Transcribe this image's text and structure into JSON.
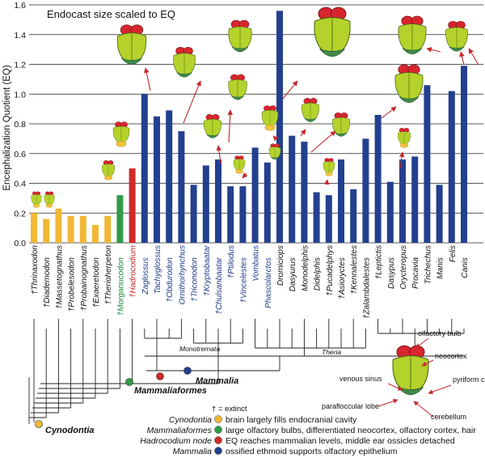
{
  "chart_data": {
    "type": "bar",
    "title": "Endocast size scaled to EQ",
    "ylabel": "Encephalization Quotient (EQ)",
    "ylim": [
      0,
      1.6
    ],
    "yticks": [
      "0.0",
      "0.2",
      "0.4",
      "0.6",
      "0.8",
      "1.0",
      "1.2",
      "1.4",
      "1.6"
    ],
    "grid": true,
    "categories": [
      "†Thrinaxodon",
      "†Diademodon",
      "†Massetognathus",
      "†Probelesodon",
      "†Probainognathus",
      "†Exaeretodon",
      "†Therioherpeton",
      "†Morganucodon",
      "†Hadrocodium",
      "Zaglossus",
      "Tachyglossus",
      "†Obdurodon",
      "Ornithorhynchus",
      "†Triconodon",
      "†Kryptobaatar",
      "†Chulsanbaatar",
      "†Ptilodus",
      "†Vincelestes",
      "Vombatus",
      "Phascolarctos",
      "Dromiciops",
      "Dasyurus",
      "Monodelphis",
      "Didelphis",
      "†Pucadelphys",
      "†Asioryctes",
      "†Kennalestes",
      "†Zalambdalestes",
      "†Leptictis",
      "Dasypus",
      "Orycteropus",
      "Procavia",
      "Trichechus",
      "Manis",
      "Felis",
      "Canis"
    ],
    "values": [
      0.2,
      0.16,
      0.23,
      0.18,
      0.18,
      0.12,
      0.18,
      0.32,
      0.5,
      1.0,
      0.85,
      0.89,
      0.75,
      0.39,
      0.52,
      0.56,
      0.38,
      0.38,
      0.64,
      0.54,
      1.56,
      0.72,
      0.68,
      0.34,
      0.32,
      0.56,
      0.36,
      0.7,
      0.86,
      0.41,
      0.56,
      0.58,
      1.06,
      0.39,
      1.02,
      1.19
    ],
    "bar_colors": [
      "#f2b733",
      "#f2b733",
      "#f2b733",
      "#f2b733",
      "#f2b733",
      "#f2b733",
      "#f2b733",
      "#2e9b46",
      "#d02a27",
      "#23408f",
      "#23408f",
      "#23408f",
      "#23408f",
      "#23408f",
      "#23408f",
      "#23408f",
      "#23408f",
      "#23408f",
      "#23408f",
      "#23408f",
      "#23408f",
      "#23408f",
      "#23408f",
      "#23408f",
      "#23408f",
      "#23408f",
      "#23408f",
      "#23408f",
      "#23408f",
      "#23408f",
      "#23408f",
      "#23408f",
      "#23408f",
      "#23408f",
      "#23408f",
      "#23408f"
    ],
    "label_colors": [
      "#111111",
      "#111111",
      "#111111",
      "#111111",
      "#111111",
      "#111111",
      "#111111",
      "#1f8a3a",
      "#c62828",
      "#1d3a8a",
      "#1d3a8a",
      "#1d3a8a",
      "#1d3a8a",
      "#1d3a8a",
      "#1d3a8a",
      "#1d3a8a",
      "#1d3a8a",
      "#1d3a8a",
      "#1d3a8a",
      "#1d3a8a",
      "#111111",
      "#111111",
      "#111111",
      "#111111",
      "#111111",
      "#111111",
      "#111111",
      "#111111",
      "#111111",
      "#111111",
      "#111111",
      "#111111",
      "#111111",
      "#111111",
      "#111111",
      "#111111"
    ],
    "clade_labels": {
      "monotremata": "Monotremata",
      "theria": "Theria",
      "mammalia": "Mammalia",
      "mammaliaformes": "Mammaliaformes",
      "cynodontia": "Cynodontia"
    }
  },
  "anatomy": {
    "olfactory_bulb": "olfactory bulb",
    "neocortex": "neocortex",
    "venous_sinus": "venous sinus",
    "pyriform_cortex": "pyriform cortex",
    "parafloccular_lobe": "parafloccular lobe",
    "cerebellum": "cerebellum"
  },
  "legend": {
    "extinct_note": "† = extinct",
    "items": [
      {
        "clade": "Cynodontia",
        "text": "brain largely fills endocranial cavity",
        "color": "#f2b733"
      },
      {
        "clade": "Mammaliaformes",
        "text": "large olfactory bulbs, differentiated neocortex, olfactory cortex, hair",
        "color": "#2e9b46"
      },
      {
        "clade": "Hadrocodium node",
        "text": "EQ reaches mammalian levels, middle ear ossicles detached",
        "color": "#d02a27"
      },
      {
        "clade": "Mammalia",
        "text": "ossified ethmoid supports olfactory epithelium",
        "color": "#23408f"
      }
    ]
  },
  "colors": {
    "endocast_green": "#b5d22c",
    "endocast_red": "#d8252e",
    "endocast_yellow": "#f2c23a",
    "arrow": "#c5282c"
  }
}
